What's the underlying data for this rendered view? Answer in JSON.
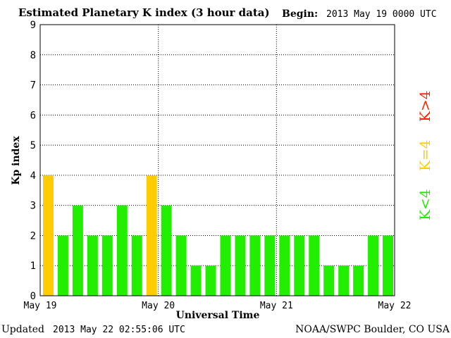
{
  "header": {
    "title": "Estimated Planetary K index (3 hour data)",
    "begin_label": "Begin:",
    "begin_value": "2013 May 19 0000 UTC"
  },
  "footer": {
    "updated_label": "Updated",
    "updated_value": "2013 May 22 02:55:06 UTC",
    "credit": "NOAA/SWPC Boulder, CO USA"
  },
  "legend": {
    "high": {
      "label": "K>4",
      "color": "#ff2200"
    },
    "equal": {
      "label": "K=4",
      "color": "#ffcc00"
    },
    "low": {
      "label": "K<4",
      "color": "#22ee00"
    }
  },
  "chart_data": {
    "type": "bar",
    "title": "Estimated Planetary K index (3 hour data)",
    "xlabel": "Universal Time",
    "ylabel": "Kp index",
    "ylim": [
      0,
      9
    ],
    "yticks": [
      "0",
      "1",
      "2",
      "3",
      "4",
      "5",
      "6",
      "7",
      "8",
      "9"
    ],
    "xticks": [
      "May 19",
      "May 20",
      "May 21",
      "May 22"
    ],
    "grid": true,
    "interval_hours": 3,
    "values": [
      4,
      2,
      3,
      2,
      2,
      3,
      2,
      4,
      3,
      2,
      1,
      1,
      2,
      2,
      2,
      2,
      2,
      2,
      2,
      1,
      1,
      1,
      2,
      2
    ],
    "colors": {
      "low": "#22ee00",
      "equal": "#ffcc00",
      "high": "#ff2200"
    }
  }
}
